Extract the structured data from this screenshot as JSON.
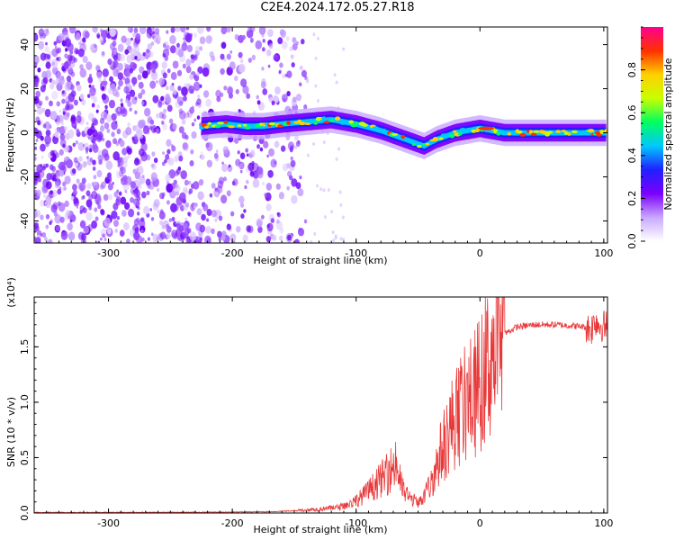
{
  "title": "C2E4.2024.172.05.27.R18",
  "chart_data": [
    {
      "type": "heatmap",
      "xlabel": "Height of straight line (km)",
      "ylabel": "Frequency (Hz)",
      "xlim": [
        -360,
        103
      ],
      "ylim": [
        -50,
        48
      ],
      "xticks": [
        -300,
        -200,
        -100,
        0,
        100
      ],
      "yticks": [
        -40,
        -20,
        0,
        20,
        40
      ],
      "colorbar": {
        "label": "Normalized spectral amplitude",
        "range": [
          0,
          1
        ],
        "ticks": [
          "0.0",
          "0.2",
          "0.4",
          "0.6",
          "0.8"
        ],
        "tick_values": [
          0,
          0.2,
          0.4,
          0.6,
          0.8
        ],
        "colors": [
          "#ffffff",
          "#c8a8ff",
          "#7b00ff",
          "#2020ff",
          "#00c8ff",
          "#00ff60",
          "#c8ff00",
          "#ffd000",
          "#ff3000",
          "#ff0090"
        ]
      },
      "ridge": {
        "x": [
          -225,
          -205,
          -190,
          -175,
          -160,
          -140,
          -120,
          -100,
          -80,
          -60,
          -45,
          -35,
          -20,
          -10,
          0,
          20,
          50,
          80,
          103
        ],
        "y": [
          3,
          4,
          3,
          3,
          4,
          5,
          6,
          4,
          1,
          -3,
          -6,
          -3,
          0,
          1,
          2,
          0,
          0,
          0,
          0
        ]
      },
      "noise_extent_x": [
        -360,
        -140
      ]
    },
    {
      "type": "line",
      "xlabel": "Height of straight line (km)",
      "ylabel": "SNR (10 * v/v)",
      "y_multiplier": "(x10⁴)",
      "xlim": [
        -360,
        103
      ],
      "ylim": [
        0,
        1.95
      ],
      "xticks": [
        -300,
        -200,
        -100,
        0,
        100
      ],
      "yticks": [
        "0.0",
        "0.5",
        "1.0",
        "1.5"
      ],
      "ytick_values": [
        0,
        0.5,
        1.0,
        1.5
      ],
      "color": "#e8393a",
      "series": [
        {
          "x": [
            -360,
            -300,
            -250,
            -200,
            -170,
            -150,
            -130,
            -115,
            -105,
            -95,
            -85,
            -75,
            -68,
            -62,
            -55,
            -48,
            -40,
            -33,
            -25,
            -18,
            -10,
            -3,
            5,
            12,
            20,
            30,
            45,
            60,
            75,
            85,
            90,
            93,
            96,
            103
          ],
          "y": [
            0.005,
            0.005,
            0.006,
            0.008,
            0.012,
            0.02,
            0.035,
            0.05,
            0.08,
            0.15,
            0.25,
            0.35,
            0.45,
            0.2,
            0.12,
            0.1,
            0.25,
            0.5,
            0.75,
            0.9,
            1.0,
            1.1,
            1.3,
            1.5,
            1.62,
            1.68,
            1.7,
            1.7,
            1.69,
            1.68,
            1.66,
            1.75,
            1.7,
            1.68
          ]
        }
      ]
    }
  ]
}
